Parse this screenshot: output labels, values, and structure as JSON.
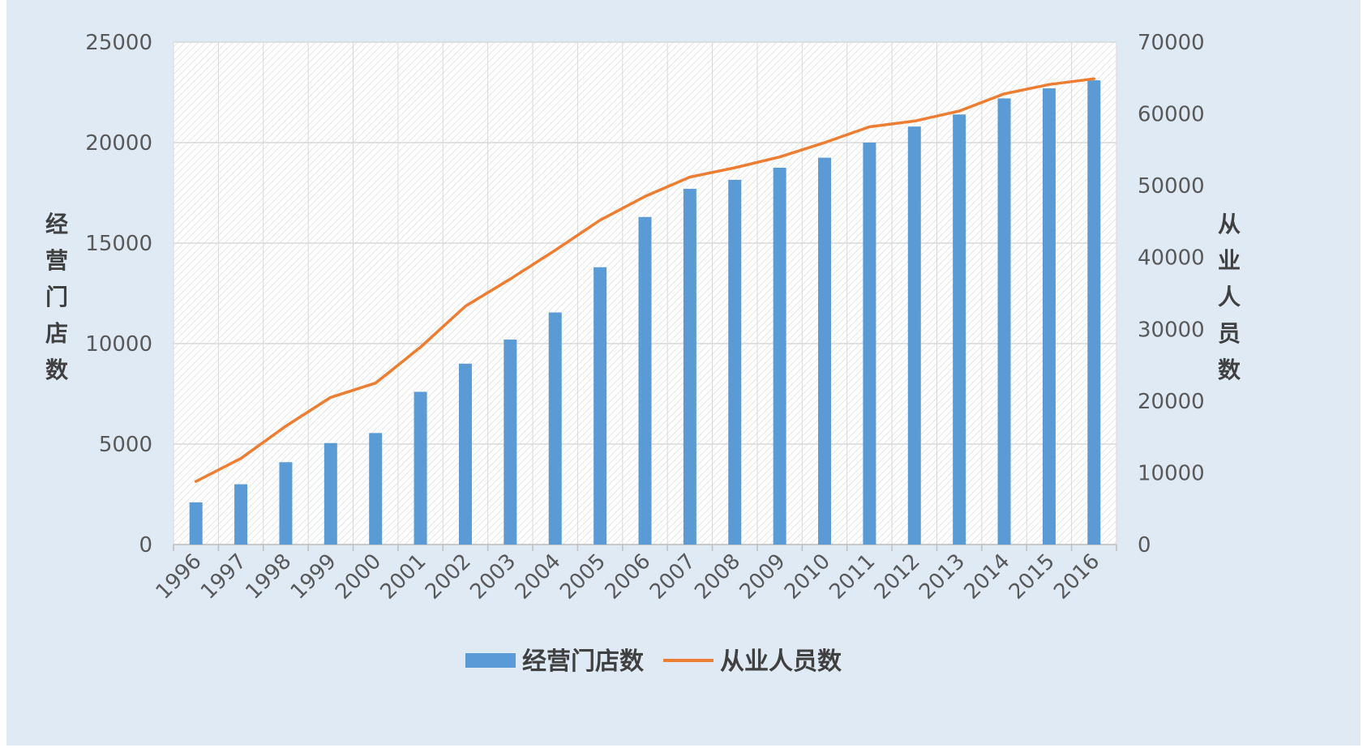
{
  "chart_data": {
    "type": "bar",
    "categories": [
      "1996",
      "1997",
      "1998",
      "1999",
      "2000",
      "2001",
      "2002",
      "2003",
      "2004",
      "2005",
      "2006",
      "2007",
      "2008",
      "2009",
      "2010",
      "2011",
      "2012",
      "2013",
      "2014",
      "2015",
      "2016"
    ],
    "series": [
      {
        "name": "经营门店数",
        "type": "bar",
        "axis": "left",
        "color": "#5b9bd5",
        "values": [
          2100,
          3000,
          4100,
          5050,
          5550,
          7600,
          9000,
          10200,
          11550,
          13800,
          16300,
          17700,
          18150,
          18750,
          19250,
          20000,
          20800,
          21400,
          22200,
          22700,
          23100
        ]
      },
      {
        "name": "从业人员数",
        "type": "line",
        "axis": "right",
        "color": "#ed7d31",
        "values": [
          8800,
          12000,
          16500,
          20500,
          22500,
          27500,
          33200,
          37000,
          41000,
          45200,
          48500,
          51200,
          52500,
          54000,
          56000,
          58200,
          59000,
          60400,
          62800,
          64100,
          64900
        ]
      }
    ],
    "ylabel": "经营门店数",
    "ylabel_right": "从业人员数",
    "ylim": [
      0,
      25000
    ],
    "ylim_right": [
      0,
      70000
    ],
    "yticks": [
      "0",
      "5000",
      "10000",
      "15000",
      "20000",
      "25000"
    ],
    "yticks_right": [
      "0",
      "10000",
      "20000",
      "30000",
      "40000",
      "50000",
      "60000",
      "70000"
    ],
    "grid": true,
    "legend_position": "bottom"
  }
}
